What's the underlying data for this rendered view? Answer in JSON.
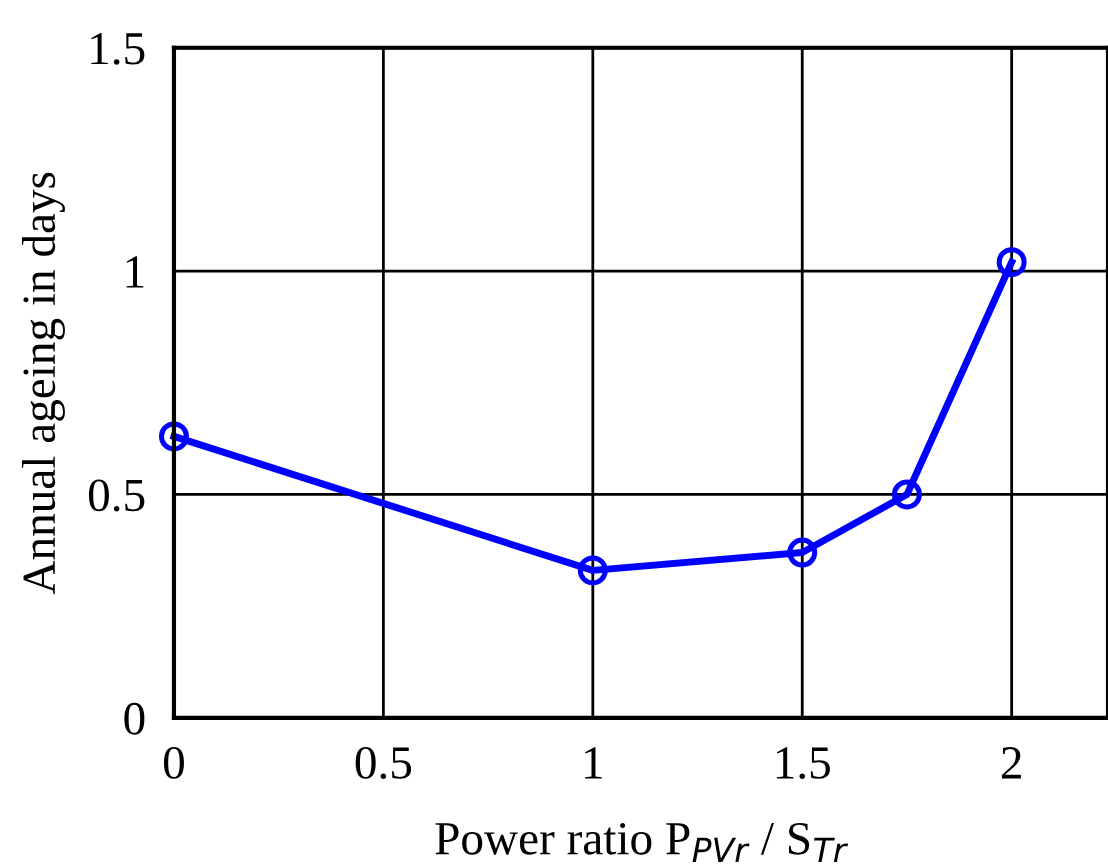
{
  "chart_data": {
    "type": "line",
    "xlabel": "Power ratio P$_{PVr}$ / S$_{Tr}$",
    "ylabel": "Annual ageing in days",
    "x": [
      0,
      1,
      1.5,
      1.75,
      2
    ],
    "series": [
      {
        "color": "#0000ff",
        "values": [
          0.63,
          0.33,
          0.37,
          0.5,
          1.02
        ]
      }
    ],
    "marker": "circle",
    "line_style": "solid",
    "grid": true,
    "xlim": [
      0,
      2.23
    ],
    "xticks": [
      0,
      0.5,
      1,
      1.5,
      2
    ],
    "ylim": [
      0,
      1.5
    ],
    "yticks": [
      0,
      0.5,
      1,
      1.5
    ]
  }
}
